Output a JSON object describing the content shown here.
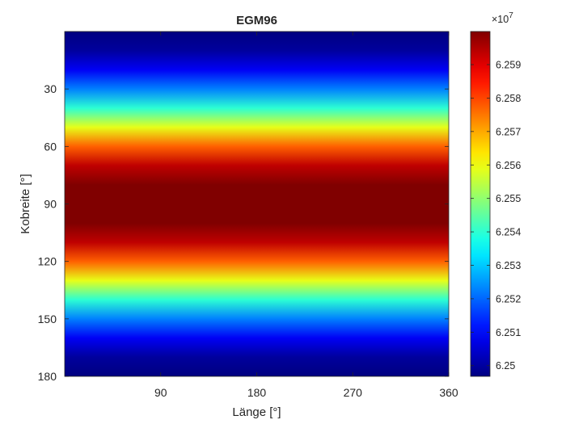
{
  "chart_data": {
    "type": "heatmap",
    "title": "EGM96",
    "xlabel": "Länge [°]",
    "ylabel": "Kobreite [°]",
    "xlim": [
      0,
      360
    ],
    "ylim": [
      0,
      180
    ],
    "y_reversed": true,
    "x_ticks": [
      90,
      180,
      270,
      360
    ],
    "x_tick_labels": [
      "90",
      "180",
      "270",
      "360"
    ],
    "y_ticks": [
      30,
      60,
      90,
      120,
      150,
      180
    ],
    "y_tick_labels": [
      "30",
      "60",
      "90",
      "120",
      "150",
      "180"
    ],
    "colormap": "jet",
    "colorbar": {
      "exponent_label": "×10",
      "exponent_power": "7",
      "clim": [
        62.4968,
        62.5999
      ],
      "ticks": [
        62.5,
        62.51,
        62.52,
        62.53,
        62.54,
        62.55,
        62.56,
        62.57,
        62.58,
        62.59
      ],
      "tick_labels": [
        "6.25",
        "6.251",
        "6.252",
        "6.253",
        "6.254",
        "6.255",
        "6.256",
        "6.257",
        "6.258",
        "6.259"
      ]
    },
    "profile": {
      "description": "value varies with colatitude only, nearly constant along longitude",
      "colatitude": [
        0,
        10,
        20,
        30,
        40,
        50,
        60,
        70,
        80,
        90,
        100,
        110,
        120,
        130,
        140,
        150,
        160,
        170,
        180
      ],
      "value": [
        62.4968,
        62.4998,
        62.5087,
        62.5226,
        62.5399,
        62.5588,
        62.5773,
        62.5935,
        62.6058,
        62.61,
        62.6058,
        62.5935,
        62.5773,
        62.5588,
        62.5399,
        62.5226,
        62.5087,
        62.4998,
        62.4968
      ]
    }
  }
}
